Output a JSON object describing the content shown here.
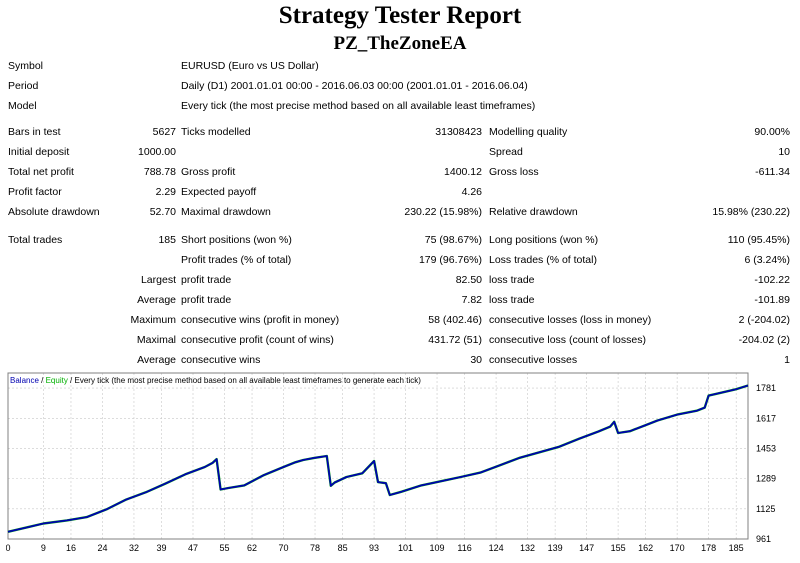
{
  "report": {
    "title": "Strategy Tester Report",
    "ea_name": "PZ_TheZoneEA"
  },
  "info": {
    "symbol_label": "Symbol",
    "symbol_value": "EURUSD (Euro vs US Dollar)",
    "period_label": "Period",
    "period_value": "Daily (D1) 2001.01.01 00:00 - 2016.06.03 00:00 (2001.01.01 - 2016.06.04)",
    "model_label": "Model",
    "model_value": "Every tick (the most precise method based on all available least timeframes)"
  },
  "stats": {
    "bars_label": "Bars in test",
    "bars_value": "5627",
    "ticks_label": "Ticks modelled",
    "ticks_value": "31308423",
    "quality_label": "Modelling quality",
    "quality_value": "90.00%",
    "deposit_label": "Initial deposit",
    "deposit_value": "1000.00",
    "spread_label": "Spread",
    "spread_value": "10",
    "net_label": "Total net profit",
    "net_value": "788.78",
    "gross_profit_label": "Gross profit",
    "gross_profit_value": "1400.12",
    "gross_loss_label": "Gross loss",
    "gross_loss_value": "-611.34",
    "pf_label": "Profit factor",
    "pf_value": "2.29",
    "payoff_label": "Expected payoff",
    "payoff_value": "4.26",
    "abs_dd_label": "Absolute drawdown",
    "abs_dd_value": "52.70",
    "max_dd_label": "Maximal drawdown",
    "max_dd_value": "230.22 (15.98%)",
    "rel_dd_label": "Relative drawdown",
    "rel_dd_value": "15.98% (230.22)"
  },
  "trades": {
    "total_label": "Total trades",
    "total_value": "185",
    "short_label": "Short positions (won %)",
    "short_value": "75 (98.67%)",
    "long_label": "Long positions (won %)",
    "long_value": "110 (95.45%)",
    "pt_label": "Profit trades (% of total)",
    "pt_value": "179 (96.76%)",
    "lt_label": "Loss trades (% of total)",
    "lt_value": "6 (3.24%)",
    "largest_label": "Largest",
    "largest_profit_label": "profit trade",
    "largest_profit_value": "82.50",
    "largest_loss_label": "loss trade",
    "largest_loss_value": "-102.22",
    "average_label": "Average",
    "average_profit_label": "profit trade",
    "average_profit_value": "7.82",
    "average_loss_label": "loss trade",
    "average_loss_value": "-101.89",
    "maximum_label": "Maximum",
    "max_wins_label": "consecutive wins (profit in money)",
    "max_wins_value": "58 (402.46)",
    "max_losses_label": "consecutive losses (loss in money)",
    "max_losses_value": "2 (-204.02)",
    "maximal_label": "Maximal",
    "maximal_profit_label": "consecutive profit (count of wins)",
    "maximal_profit_value": "431.72 (51)",
    "maximal_loss_label": "consecutive loss (count of losses)",
    "maximal_loss_value": "-204.02 (2)",
    "avg2_label": "Average",
    "avg_wins_label": "consecutive wins",
    "avg_wins_value": "30",
    "avg_losses_label": "consecutive losses",
    "avg_losses_value": "1"
  },
  "chart_data": {
    "type": "line",
    "legend": {
      "balance": "Balance",
      "sep1": " / ",
      "equity": "Equity",
      "rest": " / Every tick (the most precise method based on all available least timeframes to generate each tick)"
    },
    "colors": {
      "balance": "#0000b0",
      "equity": "#00b000",
      "grid": "#c8c8c8",
      "border": "#808080"
    },
    "grid": true,
    "xlim": [
      0,
      188
    ],
    "ylim": [
      961,
      1863
    ],
    "x_ticks": [
      0,
      9,
      16,
      24,
      32,
      39,
      47,
      55,
      62,
      70,
      78,
      85,
      93,
      101,
      109,
      116,
      124,
      132,
      139,
      147,
      155,
      162,
      170,
      178,
      185
    ],
    "y_ticks": [
      961,
      1125,
      1289,
      1453,
      1617,
      1781
    ],
    "series": [
      {
        "name": "Balance",
        "x": [
          0,
          5,
          9,
          15,
          20,
          25,
          30,
          35,
          40,
          45,
          50,
          52,
          53,
          54,
          56,
          60,
          65,
          70,
          73,
          75,
          78,
          81,
          82,
          83,
          86,
          90,
          93,
          94,
          96,
          97,
          100,
          105,
          110,
          115,
          120,
          125,
          130,
          135,
          140,
          145,
          150,
          153,
          154,
          155,
          158,
          162,
          165,
          170,
          175,
          177,
          178,
          180,
          185,
          188
        ],
        "y": [
          1000,
          1025,
          1045,
          1062,
          1080,
          1122,
          1175,
          1215,
          1262,
          1312,
          1352,
          1375,
          1395,
          1230,
          1238,
          1252,
          1308,
          1352,
          1378,
          1390,
          1402,
          1412,
          1250,
          1268,
          1298,
          1318,
          1385,
          1270,
          1264,
          1200,
          1218,
          1252,
          1275,
          1298,
          1322,
          1362,
          1402,
          1432,
          1462,
          1505,
          1545,
          1572,
          1598,
          1537,
          1547,
          1580,
          1605,
          1637,
          1658,
          1675,
          1740,
          1750,
          1775,
          1795
        ]
      }
    ]
  }
}
